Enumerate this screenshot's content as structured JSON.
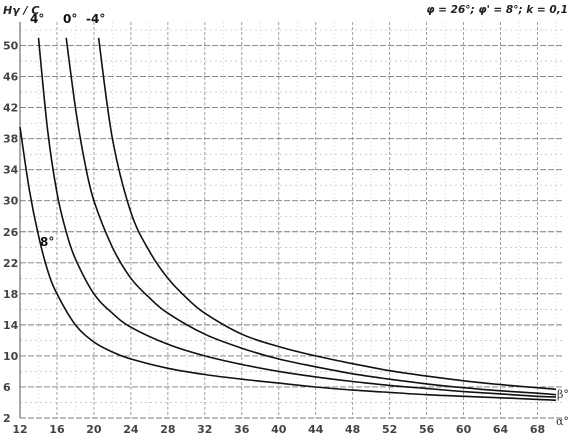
{
  "chart_data": {
    "type": "line",
    "title": "",
    "ylabel": "Hγ / C",
    "parameters_label": "φ = 26°; φ' = 8°; k = 0,1",
    "xlim": [
      12,
      70
    ],
    "ylim": [
      2,
      52
    ],
    "x_ticks": [
      "12",
      "16",
      "20",
      "24",
      "28",
      "32",
      "36",
      "40",
      "44",
      "48",
      "52",
      "56",
      "60",
      "64",
      "68"
    ],
    "y_ticks": [
      "2",
      "6",
      "10",
      "14",
      "18",
      "22",
      "26",
      "30",
      "34",
      "38",
      "42",
      "46",
      "50"
    ],
    "x_axis_symbol": "α°",
    "secondary_symbol": "β°",
    "grid": true,
    "legend": "curve labels on chart",
    "series": [
      {
        "name": "8°",
        "x": [
          12,
          13,
          14,
          15,
          16,
          18,
          20,
          22,
          24,
          28,
          32,
          36,
          40,
          44,
          48,
          52,
          56,
          60,
          64,
          68,
          70
        ],
        "y": [
          39.5,
          31.5,
          25.5,
          21,
          18,
          14,
          11.8,
          10.5,
          9.6,
          8.4,
          7.6,
          7.0,
          6.5,
          6.0,
          5.6,
          5.3,
          5.0,
          4.8,
          4.6,
          4.4,
          4.3
        ]
      },
      {
        "name": "4°",
        "x": [
          14,
          15,
          16,
          17,
          18,
          20,
          22,
          24,
          28,
          32,
          36,
          40,
          44,
          48,
          52,
          56,
          60,
          64,
          68,
          70
        ],
        "y": [
          51,
          39,
          31,
          26,
          22.5,
          18,
          15.5,
          13.7,
          11.5,
          10,
          8.9,
          8.0,
          7.3,
          6.7,
          6.2,
          5.8,
          5.4,
          5.1,
          4.8,
          4.7
        ]
      },
      {
        "name": "0°",
        "x": [
          17,
          18,
          19,
          20,
          22,
          24,
          26,
          28,
          32,
          36,
          40,
          44,
          48,
          52,
          56,
          60,
          64,
          68,
          70
        ],
        "y": [
          51,
          42,
          35,
          30,
          24,
          20,
          17.5,
          15.5,
          12.8,
          11,
          9.6,
          8.6,
          7.7,
          7.0,
          6.4,
          5.9,
          5.5,
          5.2,
          5.0
        ]
      },
      {
        "name": "-4°",
        "x": [
          20.5,
          22,
          24,
          26,
          28,
          30,
          32,
          36,
          40,
          44,
          48,
          52,
          56,
          60,
          64,
          68,
          70
        ],
        "y": [
          51,
          38,
          28.5,
          23.5,
          20,
          17.5,
          15.5,
          12.8,
          11.2,
          10,
          9.0,
          8.1,
          7.4,
          6.8,
          6.3,
          5.9,
          5.7
        ]
      }
    ]
  }
}
